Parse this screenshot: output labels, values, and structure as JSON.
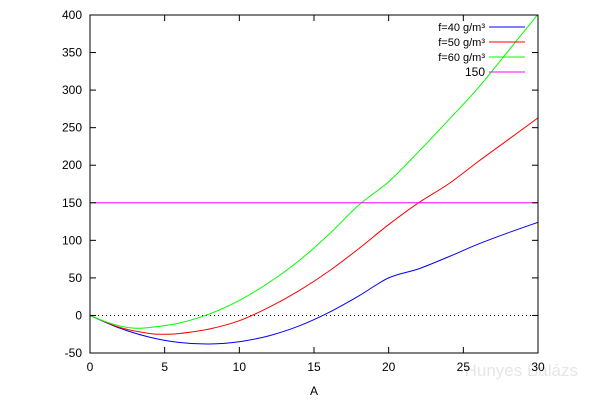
{
  "chart_data": {
    "type": "line",
    "xlabel": "A",
    "ylabel": "",
    "xlim": [
      0,
      30
    ],
    "ylim": [
      -50,
      400
    ],
    "xticks": [
      0,
      5,
      10,
      15,
      20,
      25,
      30
    ],
    "yticks": [
      -50,
      0,
      50,
      100,
      150,
      200,
      250,
      300,
      350,
      400
    ],
    "grid": false,
    "legend_position": "top-right",
    "zero_line": {
      "style": "dotted",
      "y": 0
    },
    "series": [
      {
        "name": "f=40 g/m³",
        "color": "#0000ff",
        "x": [
          0,
          2,
          4,
          6,
          8,
          10,
          12,
          14,
          16,
          18,
          20,
          22,
          24,
          26,
          28,
          30
        ],
        "y": [
          0,
          -17,
          -29,
          -36,
          -38,
          -35,
          -27,
          -14,
          4,
          26,
          50,
          62,
          78,
          95,
          110,
          124
        ]
      },
      {
        "name": "f=50 g/m³",
        "color": "#ff0000",
        "x": [
          0,
          2,
          4,
          5,
          6,
          8,
          10,
          12,
          14,
          16,
          18,
          20,
          22,
          24,
          26,
          28,
          30
        ],
        "y": [
          0,
          -16,
          -24,
          -25,
          -24,
          -18,
          -7,
          11,
          33,
          59,
          89,
          121,
          150,
          175,
          205,
          234,
          263
        ]
      },
      {
        "name": "f=60 g/m³",
        "color": "#00ff00",
        "x": [
          0,
          1,
          2,
          3,
          4,
          6,
          8,
          10,
          12,
          14,
          16,
          18,
          20,
          22,
          24,
          26,
          28,
          30
        ],
        "y": [
          0,
          -8,
          -14,
          -17,
          -16,
          -10,
          2,
          20,
          44,
          73,
          108,
          147,
          178,
          218,
          260,
          303,
          352,
          401
        ]
      },
      {
        "name": "150",
        "color": "#ff00ff",
        "x": [
          0,
          30
        ],
        "y": [
          150,
          150
        ]
      }
    ],
    "annotations": [
      {
        "text": "Hunyes Balázs",
        "kind": "watermark"
      }
    ]
  }
}
